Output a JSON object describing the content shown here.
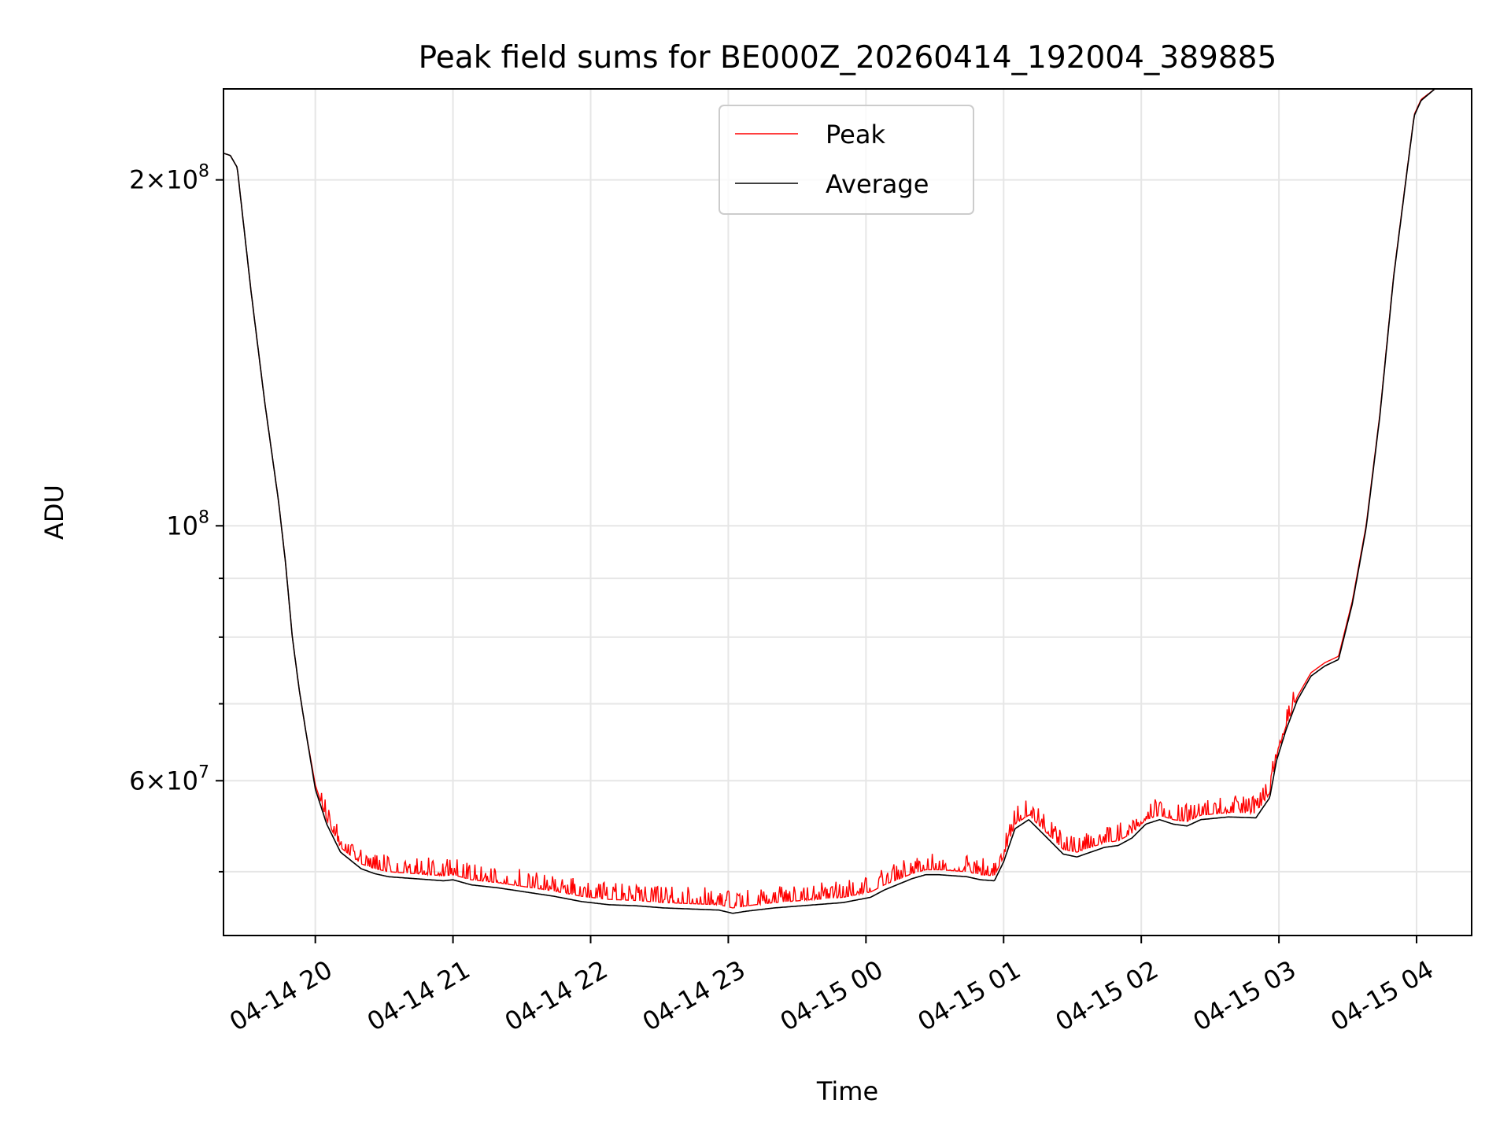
{
  "chart_data": {
    "type": "line",
    "title": "Peak field sums for BE000Z_20260414_192004_389885",
    "xlabel": "Time",
    "ylabel": "ADU",
    "yscale": "log",
    "grid": true,
    "legend_position": "upper-center",
    "x_unit": "hours since 2026-04-14 19:20",
    "xlim": [
      0,
      9.067
    ],
    "ylim": [
      44000000,
      240000000
    ],
    "x_ticks": [
      {
        "x": 0.667,
        "label": "04-14 20"
      },
      {
        "x": 1.667,
        "label": "04-14 21"
      },
      {
        "x": 2.667,
        "label": "04-14 22"
      },
      {
        "x": 3.667,
        "label": "04-14 23"
      },
      {
        "x": 4.667,
        "label": "04-15 00"
      },
      {
        "x": 5.667,
        "label": "04-15 01"
      },
      {
        "x": 6.667,
        "label": "04-15 02"
      },
      {
        "x": 7.667,
        "label": "04-15 03"
      },
      {
        "x": 8.667,
        "label": "04-15 04"
      }
    ],
    "y_major_ticks": [
      {
        "value": 100000000,
        "base": "10",
        "exp": "8"
      },
      {
        "value": 200000000,
        "mant": "2",
        "times": "×",
        "base": "10",
        "exp": "8"
      },
      {
        "value": 60000000,
        "mant": "6",
        "times": "×",
        "base": "10",
        "exp": "7"
      }
    ],
    "y_minor_ticks": [
      50000000,
      70000000,
      80000000,
      90000000
    ],
    "series": [
      {
        "name": "Peak",
        "color": "#ff0000",
        "spike_amplitude": 0.035,
        "x": [
          0,
          0.05,
          0.1,
          0.12,
          0.2,
          0.3,
          0.4,
          0.45,
          0.5,
          0.55,
          0.6,
          0.667,
          0.75,
          0.85,
          1.0,
          1.1,
          1.2,
          1.4,
          1.6,
          1.667,
          1.8,
          2.0,
          2.2,
          2.4,
          2.6,
          2.8,
          3.0,
          3.2,
          3.4,
          3.6,
          3.7,
          3.8,
          4.0,
          4.2,
          4.5,
          4.7,
          4.8,
          5.0,
          5.1,
          5.2,
          5.4,
          5.5,
          5.6,
          5.667,
          5.75,
          5.85,
          5.95,
          6.1,
          6.2,
          6.3,
          6.4,
          6.5,
          6.6,
          6.7,
          6.8,
          6.9,
          7.0,
          7.1,
          7.3,
          7.5,
          7.6,
          7.65,
          7.72,
          7.8,
          7.9,
          8.0,
          8.1,
          8.2,
          8.3,
          8.4,
          8.5,
          8.6,
          8.65,
          8.7,
          8.8,
          8.9,
          9.067
        ],
        "y": [
          211000000,
          210000000,
          205000000,
          195000000,
          160000000,
          128000000,
          105000000,
          93000000,
          80000000,
          72000000,
          66000000,
          59500000,
          55500000,
          52500000,
          50800000,
          50300000,
          50000000,
          49800000,
          49600000,
          49700000,
          49200000,
          48900000,
          48500000,
          48100000,
          47600000,
          47300000,
          47200000,
          47000000,
          46900000,
          46800000,
          46500000,
          46700000,
          47000000,
          47200000,
          47500000,
          48000000,
          48700000,
          49800000,
          50200000,
          50200000,
          50000000,
          49700000,
          49600000,
          51500000,
          55000000,
          56000000,
          54500000,
          52300000,
          52000000,
          52500000,
          53000000,
          53200000,
          54000000,
          55500000,
          56000000,
          55500000,
          55300000,
          56000000,
          56300000,
          56200000,
          58500000,
          63000000,
          67000000,
          71000000,
          74500000,
          76000000,
          77000000,
          86000000,
          100000000,
          125000000,
          165000000,
          205000000,
          228000000,
          235000000,
          240000000,
          240000000,
          240000000
        ]
      },
      {
        "name": "Average",
        "color": "#000000",
        "spike_amplitude": 0,
        "x": [
          0,
          0.05,
          0.1,
          0.12,
          0.2,
          0.3,
          0.4,
          0.45,
          0.5,
          0.55,
          0.6,
          0.667,
          0.75,
          0.85,
          1.0,
          1.1,
          1.2,
          1.4,
          1.6,
          1.667,
          1.8,
          2.0,
          2.2,
          2.4,
          2.6,
          2.8,
          3.0,
          3.2,
          3.4,
          3.6,
          3.7,
          3.8,
          4.0,
          4.2,
          4.5,
          4.7,
          4.8,
          5.0,
          5.1,
          5.2,
          5.4,
          5.5,
          5.6,
          5.667,
          5.75,
          5.85,
          5.95,
          6.1,
          6.2,
          6.3,
          6.4,
          6.5,
          6.6,
          6.7,
          6.8,
          6.9,
          7.0,
          7.1,
          7.3,
          7.5,
          7.6,
          7.65,
          7.72,
          7.8,
          7.9,
          8.0,
          8.1,
          8.2,
          8.3,
          8.4,
          8.5,
          8.6,
          8.65,
          8.7,
          8.8,
          8.9,
          9.067
        ],
        "y": [
          211000000,
          210000000,
          205000000,
          195000000,
          160000000,
          128000000,
          105000000,
          93000000,
          80000000,
          72000000,
          66000000,
          59000000,
          55000000,
          52000000,
          50300000,
          49800000,
          49500000,
          49300000,
          49100000,
          49200000,
          48700000,
          48400000,
          48000000,
          47600000,
          47100000,
          46800000,
          46700000,
          46500000,
          46400000,
          46300000,
          46000000,
          46200000,
          46500000,
          46700000,
          47000000,
          47500000,
          48200000,
          49300000,
          49700000,
          49700000,
          49500000,
          49200000,
          49100000,
          51000000,
          54500000,
          55500000,
          54000000,
          51800000,
          51500000,
          52000000,
          52500000,
          52700000,
          53500000,
          55000000,
          55500000,
          55000000,
          54800000,
          55500000,
          55800000,
          55700000,
          58000000,
          62500000,
          66500000,
          70500000,
          74000000,
          75500000,
          76500000,
          85500000,
          99500000,
          124500000,
          164500000,
          204500000,
          227500000,
          234500000,
          240000000,
          240000000,
          240000000
        ]
      }
    ]
  }
}
